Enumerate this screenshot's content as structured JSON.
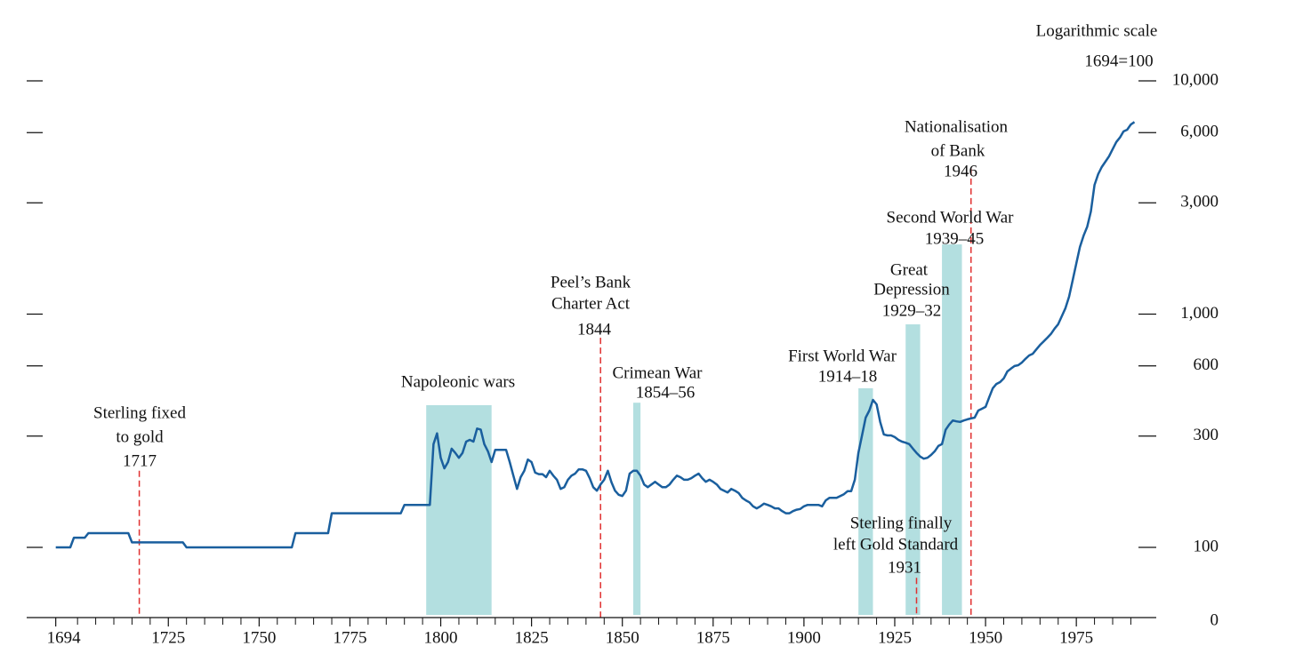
{
  "chart_data": {
    "type": "line",
    "scale_note": "Logarithmic scale",
    "base_note": "1694=100",
    "log_y": true,
    "xlim": [
      1686,
      1997
    ],
    "ylim": [
      50,
      10000
    ],
    "xticks": [
      1694,
      1725,
      1750,
      1775,
      1800,
      1825,
      1850,
      1875,
      1900,
      1925,
      1950,
      1975
    ],
    "xminorticks": [
      1700,
      1705,
      1710,
      1715,
      1720,
      1730,
      1735,
      1740,
      1745,
      1755,
      1760,
      1765,
      1770,
      1780,
      1785,
      1790,
      1795,
      1805,
      1810,
      1815,
      1820,
      1830,
      1835,
      1840,
      1845,
      1855,
      1860,
      1865,
      1870,
      1880,
      1885,
      1890,
      1895,
      1905,
      1910,
      1915,
      1920,
      1930,
      1935,
      1940,
      1945,
      1955,
      1960,
      1965,
      1970,
      1980,
      1985,
      1990
    ],
    "yticks": [
      {
        "value": 10000,
        "label": "10,000"
      },
      {
        "value": 6000,
        "label": "6,000"
      },
      {
        "value": 3000,
        "label": "3,000"
      },
      {
        "value": 1000,
        "label": "1,000"
      },
      600,
      300,
      100,
      {
        "value": 50,
        "label": "0"
      }
    ],
    "series": [
      {
        "color": "#1a5f9e",
        "x": [
          1694,
          1698,
          1699,
          1702,
          1703,
          1714,
          1715,
          1729,
          1730,
          1759,
          1760,
          1769,
          1770,
          1789,
          1790,
          1797,
          1798,
          1799,
          1800,
          1801,
          1802,
          1803,
          1804,
          1805,
          1806,
          1807,
          1808,
          1809,
          1810,
          1811,
          1812,
          1813,
          1814,
          1815,
          1816,
          1817,
          1818,
          1819,
          1820,
          1821,
          1822,
          1823,
          1824,
          1825,
          1826,
          1827,
          1828,
          1829,
          1830,
          1831,
          1832,
          1833,
          1834,
          1835,
          1836,
          1837,
          1838,
          1839,
          1840,
          1841,
          1842,
          1843,
          1844,
          1845,
          1846,
          1847,
          1848,
          1849,
          1850,
          1851,
          1852,
          1853,
          1854,
          1855,
          1856,
          1857,
          1858,
          1859,
          1860,
          1861,
          1862,
          1863,
          1864,
          1865,
          1866,
          1867,
          1868,
          1869,
          1870,
          1871,
          1872,
          1873,
          1874,
          1875,
          1876,
          1877,
          1878,
          1879,
          1880,
          1881,
          1882,
          1883,
          1884,
          1885,
          1886,
          1887,
          1888,
          1889,
          1890,
          1891,
          1892,
          1893,
          1894,
          1895,
          1896,
          1897,
          1898,
          1899,
          1900,
          1901,
          1902,
          1903,
          1904,
          1905,
          1906,
          1907,
          1908,
          1909,
          1910,
          1911,
          1912,
          1913,
          1914,
          1915,
          1916,
          1917,
          1918,
          1919,
          1920,
          1921,
          1922,
          1923,
          1924,
          1925,
          1926,
          1927,
          1928,
          1929,
          1930,
          1931,
          1932,
          1933,
          1934,
          1935,
          1936,
          1937,
          1938,
          1939,
          1940,
          1941,
          1942,
          1943,
          1944,
          1945,
          1946,
          1947,
          1948,
          1949,
          1950,
          1951,
          1952,
          1953,
          1954,
          1955,
          1956,
          1957,
          1958,
          1959,
          1960,
          1961,
          1962,
          1963,
          1964,
          1965,
          1966,
          1967,
          1968,
          1969,
          1970,
          1971,
          1972,
          1973,
          1974,
          1975,
          1976,
          1977,
          1978,
          1979,
          1980,
          1981,
          1982,
          1983,
          1984,
          1985,
          1986,
          1987,
          1988,
          1989,
          1990,
          1991
        ],
        "values": [
          100,
          100,
          110,
          110,
          115,
          115,
          105,
          105,
          100,
          100,
          115,
          115,
          140,
          140,
          152,
          152,
          277,
          308,
          242,
          218,
          232,
          265,
          254,
          242,
          254,
          284,
          289,
          284,
          323,
          320,
          277,
          258,
          232,
          262,
          262,
          262,
          262,
          232,
          203,
          178,
          200,
          213,
          238,
          232,
          209,
          206,
          206,
          200,
          213,
          203,
          195,
          178,
          181,
          195,
          203,
          207,
          216,
          216,
          213,
          198,
          181,
          175,
          186,
          195,
          213,
          190,
          175,
          168,
          166,
          175,
          207,
          213,
          213,
          203,
          186,
          181,
          186,
          191,
          186,
          181,
          181,
          186,
          195,
          203,
          200,
          195,
          195,
          198,
          203,
          207,
          198,
          191,
          195,
          191,
          186,
          178,
          175,
          172,
          178,
          175,
          171,
          163,
          159,
          156,
          150,
          147,
          150,
          154,
          152,
          150,
          147,
          147,
          143,
          140,
          140,
          143,
          145,
          146,
          150,
          152,
          152,
          152,
          152,
          150,
          159,
          163,
          163,
          163,
          166,
          169,
          174,
          174,
          195,
          254,
          302,
          360,
          386,
          429,
          410,
          345,
          305,
          302,
          302,
          297,
          289,
          284,
          281,
          277,
          265,
          254,
          245,
          240,
          242,
          249,
          258,
          272,
          277,
          319,
          336,
          350,
          347,
          345,
          350,
          354,
          357,
          360,
          386,
          393,
          400,
          440,
          481,
          502,
          511,
          530,
          568,
          584,
          599,
          604,
          620,
          643,
          665,
          676,
          706,
          737,
          764,
          792,
          822,
          867,
          905,
          979,
          1060,
          1187,
          1400,
          1655,
          1940,
          2170,
          2370,
          2755,
          3580,
          3980,
          4270,
          4500,
          4750,
          5100,
          5470,
          5720,
          6070,
          6170,
          6500,
          6660
        ]
      }
    ],
    "periods": [
      {
        "start": 1796,
        "end": 1814,
        "top": 407,
        "color": "#b3dfe0"
      },
      {
        "start": 1853,
        "end": 1855,
        "top": 417,
        "color": "#b3dfe0"
      },
      {
        "start": 1915,
        "end": 1919,
        "top": 481,
        "color": "#b3dfe0"
      },
      {
        "start": 1928,
        "end": 1932,
        "top": 904,
        "color": "#b3dfe0"
      },
      {
        "start": 1938,
        "end": 1943.5,
        "top": 1990,
        "color": "#b3dfe0"
      }
    ],
    "events": [
      {
        "year": 1717,
        "top": 213,
        "color": "#e03030"
      },
      {
        "year": 1844,
        "top": 792,
        "color": "#e03030"
      },
      {
        "year": 1931,
        "top": 74,
        "color": "#e03030"
      },
      {
        "year": 1946,
        "top": 4200,
        "color": "#e03030"
      }
    ],
    "annotations": [
      {
        "lines": [
          "Sterling fixed",
          "to gold",
          "1717"
        ]
      },
      {
        "lines": [
          "Napoleonic wars"
        ]
      },
      {
        "lines": [
          "Peel’s Bank",
          "Charter Act",
          "1844"
        ]
      },
      {
        "lines": [
          "Crimean War",
          "1854–56"
        ]
      },
      {
        "lines": [
          "First World War",
          "1914–18"
        ]
      },
      {
        "lines": [
          "Great",
          "Depression",
          "1929–32"
        ]
      },
      {
        "lines": [
          "Second World War",
          "1939–45"
        ]
      },
      {
        "lines": [
          "Nationalisation",
          "of Bank",
          "1946"
        ]
      },
      {
        "lines": [
          "Sterling finally",
          "left Gold Standard",
          "1931"
        ]
      }
    ]
  }
}
